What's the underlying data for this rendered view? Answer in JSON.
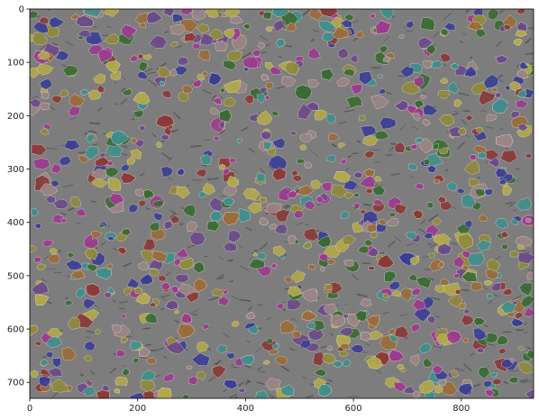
{
  "figure": {
    "image_width_units": 934,
    "image_height_units": 730,
    "x_ticks": [
      "0",
      "200",
      "400",
      "600",
      "800"
    ],
    "x_tick_values": [
      0,
      200,
      400,
      600,
      800
    ],
    "y_ticks": [
      "0",
      "100",
      "200",
      "300",
      "400",
      "500",
      "600",
      "700"
    ],
    "y_tick_values": [
      0,
      100,
      200,
      300,
      400,
      500,
      600,
      700
    ],
    "background_color": "#7d7d7d",
    "segment_colors": [
      "#8b3a3a",
      "#3b3f94",
      "#3a6b34",
      "#8e8a3c",
      "#9b3b8e",
      "#3f8e8c",
      "#9a8484",
      "#9a6b3b",
      "#6a4b8a",
      "#b0a84a"
    ],
    "edge_color": "#e8dcd0",
    "crack_color": "#3a3a3a"
  }
}
